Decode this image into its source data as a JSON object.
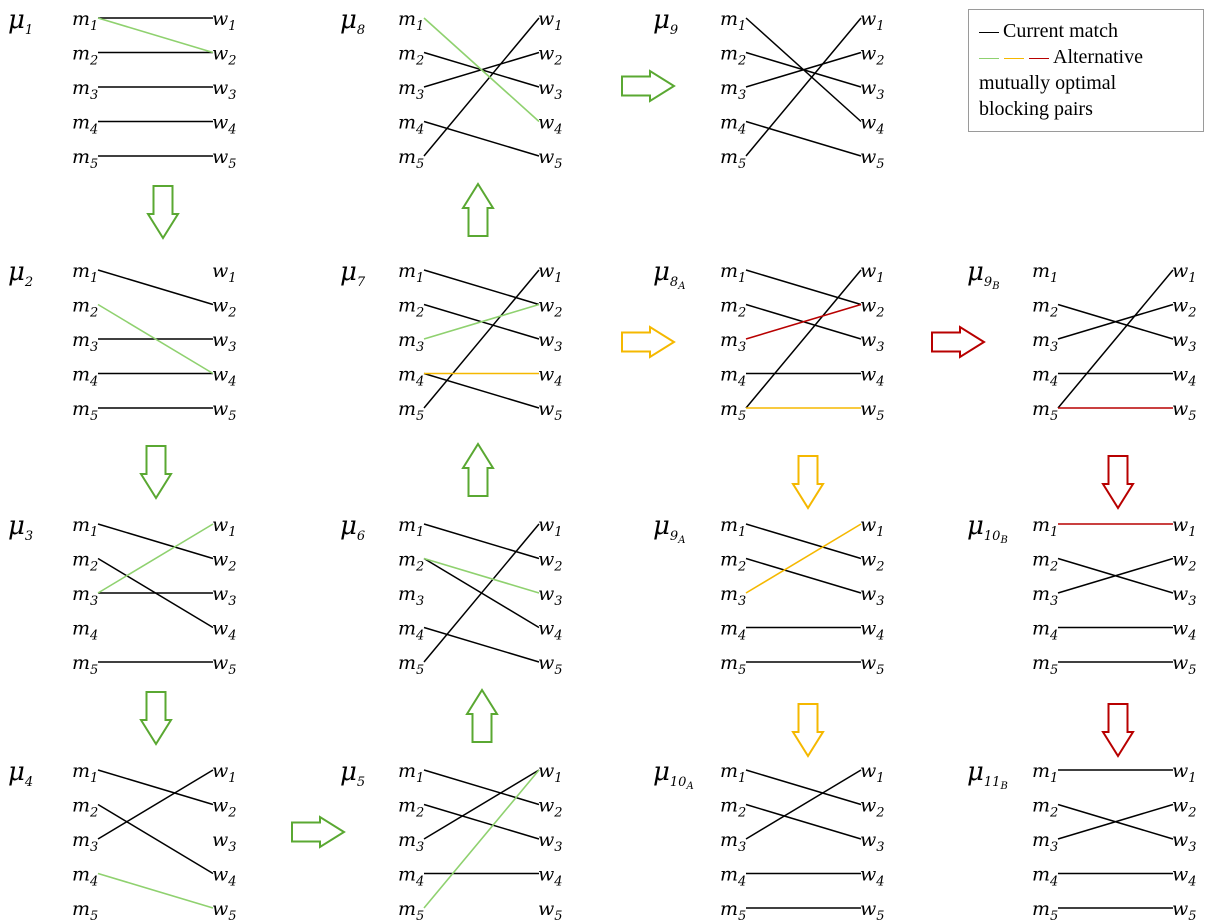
{
  "colors": {
    "current": "#000000",
    "green": "#8fd16f",
    "yellow": "#f5b800",
    "red": "#b80000",
    "arrow_green": "#5aa832",
    "arrow_yellow": "#f5b800",
    "arrow_red": "#b80000"
  },
  "legend": {
    "current_label": "Current match",
    "alternative_label": "Alternative",
    "line2": "mutually optimal",
    "line3": "blocking pairs",
    "icon_names": [
      "black-line-icon",
      "green-line-icon",
      "yellow-line-icon",
      "red-line-icon"
    ]
  },
  "men_labels": [
    "m1",
    "m2",
    "m3",
    "m4",
    "m5"
  ],
  "women_labels": [
    "w1",
    "w2",
    "w3",
    "w4",
    "w5"
  ],
  "panels": [
    {
      "id": "p1",
      "mu": "1",
      "edges": [
        [
          1,
          1,
          "k"
        ],
        [
          2,
          2,
          "k"
        ],
        [
          3,
          3,
          "k"
        ],
        [
          4,
          4,
          "k"
        ],
        [
          5,
          5,
          "k"
        ],
        [
          1,
          2,
          "g"
        ]
      ]
    },
    {
      "id": "p2",
      "mu": "2",
      "edges": [
        [
          1,
          2,
          "k"
        ],
        [
          3,
          3,
          "k"
        ],
        [
          4,
          4,
          "k"
        ],
        [
          5,
          5,
          "k"
        ],
        [
          2,
          4,
          "g"
        ]
      ]
    },
    {
      "id": "p3",
      "mu": "3",
      "edges": [
        [
          1,
          2,
          "k"
        ],
        [
          2,
          4,
          "k"
        ],
        [
          3,
          3,
          "k"
        ],
        [
          5,
          5,
          "k"
        ],
        [
          3,
          1,
          "g"
        ]
      ]
    },
    {
      "id": "p4",
      "mu": "4",
      "edges": [
        [
          1,
          2,
          "k"
        ],
        [
          2,
          4,
          "k"
        ],
        [
          3,
          1,
          "k"
        ],
        [
          4,
          5,
          "g"
        ]
      ]
    },
    {
      "id": "p5",
      "mu": "5",
      "edges": [
        [
          1,
          2,
          "k"
        ],
        [
          2,
          3,
          "k"
        ],
        [
          3,
          1,
          "k"
        ],
        [
          4,
          4,
          "k"
        ],
        [
          5,
          1,
          "g"
        ]
      ]
    },
    {
      "id": "p6",
      "mu": "6",
      "edges": [
        [
          1,
          2,
          "k"
        ],
        [
          2,
          4,
          "k"
        ],
        [
          4,
          5,
          "k"
        ],
        [
          5,
          1,
          "k"
        ],
        [
          2,
          3,
          "g"
        ]
      ]
    },
    {
      "id": "p7",
      "mu": "7",
      "edges": [
        [
          1,
          2,
          "k"
        ],
        [
          2,
          3,
          "k"
        ],
        [
          4,
          5,
          "k"
        ],
        [
          5,
          1,
          "k"
        ],
        [
          3,
          2,
          "g"
        ],
        [
          4,
          4,
          "y"
        ]
      ]
    },
    {
      "id": "p8",
      "mu": "8",
      "edges": [
        [
          2,
          3,
          "k"
        ],
        [
          3,
          2,
          "k"
        ],
        [
          4,
          5,
          "k"
        ],
        [
          5,
          1,
          "k"
        ],
        [
          1,
          4,
          "g"
        ]
      ]
    },
    {
      "id": "p9",
      "mu": "9",
      "edges": [
        [
          1,
          4,
          "k"
        ],
        [
          2,
          3,
          "k"
        ],
        [
          3,
          2,
          "k"
        ],
        [
          4,
          5,
          "k"
        ],
        [
          5,
          1,
          "k"
        ]
      ]
    },
    {
      "id": "p8A",
      "mu": "8",
      "mu_sub": "A",
      "edges": [
        [
          1,
          2,
          "k"
        ],
        [
          2,
          3,
          "k"
        ],
        [
          4,
          4,
          "k"
        ],
        [
          5,
          1,
          "k"
        ],
        [
          3,
          2,
          "r"
        ],
        [
          5,
          5,
          "y"
        ]
      ]
    },
    {
      "id": "p9B",
      "mu": "9",
      "mu_sub": "B",
      "edges": [
        [
          2,
          3,
          "k"
        ],
        [
          3,
          2,
          "k"
        ],
        [
          4,
          4,
          "k"
        ],
        [
          5,
          1,
          "k"
        ],
        [
          5,
          5,
          "r"
        ]
      ]
    },
    {
      "id": "p9A",
      "mu": "9",
      "mu_sub": "A",
      "edges": [
        [
          1,
          2,
          "k"
        ],
        [
          2,
          3,
          "k"
        ],
        [
          4,
          4,
          "k"
        ],
        [
          5,
          5,
          "k"
        ],
        [
          3,
          1,
          "y"
        ]
      ]
    },
    {
      "id": "p10B",
      "mu": "10",
      "mu_sub": "B",
      "edges": [
        [
          2,
          3,
          "k"
        ],
        [
          3,
          2,
          "k"
        ],
        [
          4,
          4,
          "k"
        ],
        [
          5,
          5,
          "k"
        ],
        [
          1,
          1,
          "r"
        ]
      ]
    },
    {
      "id": "p10A",
      "mu": "10",
      "mu_sub": "A",
      "edges": [
        [
          1,
          2,
          "k"
        ],
        [
          2,
          3,
          "k"
        ],
        [
          3,
          1,
          "k"
        ],
        [
          4,
          4,
          "k"
        ],
        [
          5,
          5,
          "k"
        ]
      ]
    },
    {
      "id": "p11B",
      "mu": "11",
      "mu_sub": "B",
      "edges": [
        [
          1,
          1,
          "k"
        ],
        [
          2,
          3,
          "k"
        ],
        [
          3,
          2,
          "k"
        ],
        [
          4,
          4,
          "k"
        ],
        [
          5,
          5,
          "k"
        ]
      ]
    }
  ],
  "arrows": [
    {
      "id": "a1-2",
      "dir": "down",
      "color": "g"
    },
    {
      "id": "a2-3",
      "dir": "down",
      "color": "g"
    },
    {
      "id": "a3-4",
      "dir": "down",
      "color": "g"
    },
    {
      "id": "a4-5",
      "dir": "right",
      "color": "g"
    },
    {
      "id": "a5-6",
      "dir": "up",
      "color": "g"
    },
    {
      "id": "a6-7",
      "dir": "up",
      "color": "g"
    },
    {
      "id": "a7-8",
      "dir": "up",
      "color": "g"
    },
    {
      "id": "a8-9",
      "dir": "right",
      "color": "g"
    },
    {
      "id": "a7-8A",
      "dir": "right",
      "color": "y"
    },
    {
      "id": "a8A-9B",
      "dir": "right",
      "color": "r"
    },
    {
      "id": "a8A-9A",
      "dir": "down",
      "color": "y"
    },
    {
      "id": "a9A-10A",
      "dir": "down",
      "color": "y"
    },
    {
      "id": "a9B-10B",
      "dir": "down",
      "color": "r"
    },
    {
      "id": "a10B-11B",
      "dir": "down",
      "color": "r"
    }
  ]
}
